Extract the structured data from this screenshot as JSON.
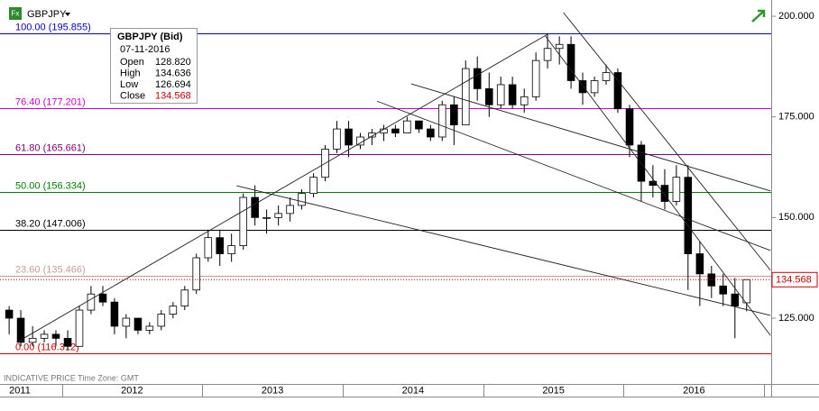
{
  "header": {
    "icon": "Fx",
    "symbol": "GBPJPY",
    "footer": "INDICATIVE PRICE   Time Zone: GMT"
  },
  "tooltip": {
    "title": "GBPJPY (Bid)",
    "date": "07-11-2016",
    "rows": [
      {
        "label": "Open",
        "value": "128.820"
      },
      {
        "label": "High",
        "value": "134.636"
      },
      {
        "label": "Low",
        "value": "126.694"
      },
      {
        "label": "Close",
        "value": "134.568"
      }
    ]
  },
  "chart_data": {
    "type": "candlestick",
    "x": [
      2011.625,
      2011.708,
      2011.792,
      2011.875,
      2011.958,
      2012.042,
      2012.125,
      2012.208,
      2012.292,
      2012.375,
      2012.458,
      2012.542,
      2012.625,
      2012.708,
      2012.792,
      2012.875,
      2012.958,
      2013.042,
      2013.125,
      2013.208,
      2013.292,
      2013.375,
      2013.458,
      2013.542,
      2013.625,
      2013.708,
      2013.792,
      2013.875,
      2013.958,
      2014.042,
      2014.125,
      2014.208,
      2014.292,
      2014.375,
      2014.458,
      2014.542,
      2014.625,
      2014.708,
      2014.792,
      2014.875,
      2014.958,
      2015.042,
      2015.125,
      2015.208,
      2015.292,
      2015.375,
      2015.458,
      2015.542,
      2015.625,
      2015.708,
      2015.792,
      2015.875,
      2015.958,
      2016.042,
      2016.125,
      2016.208,
      2016.292,
      2016.375,
      2016.458,
      2016.542,
      2016.625,
      2016.708,
      2016.792,
      2016.875
    ],
    "open": [
      127,
      125,
      119,
      120,
      121,
      120,
      118,
      127,
      131,
      129,
      123,
      125,
      122,
      123,
      126,
      128,
      132,
      140,
      145,
      141,
      143,
      155,
      150,
      150,
      151,
      153,
      156,
      160,
      167,
      172,
      168,
      170,
      171,
      172,
      171,
      174,
      172,
      170,
      178,
      173,
      187,
      182,
      178,
      183,
      178,
      180,
      189,
      192,
      193,
      184,
      181,
      184,
      186,
      177,
      168,
      159,
      158,
      154,
      160,
      141,
      136,
      133,
      131,
      128.82
    ],
    "high": [
      128,
      127,
      123,
      122,
      122,
      122,
      128,
      133,
      133,
      130,
      126,
      125,
      124,
      127,
      129,
      133,
      141,
      147,
      147,
      146,
      156,
      158,
      152,
      153,
      155,
      157,
      161,
      168,
      174,
      174,
      171,
      172,
      173,
      173,
      175,
      174,
      173,
      179,
      180,
      189,
      190,
      186,
      185,
      185,
      182,
      191,
      195.8,
      195,
      195,
      186,
      185,
      188,
      187,
      178,
      169,
      163,
      162,
      163,
      163,
      144,
      138,
      136,
      135,
      134.636
    ],
    "low": [
      121,
      118,
      118,
      119,
      118,
      117,
      118,
      126,
      128,
      121,
      120,
      121,
      121,
      122,
      125,
      127,
      131,
      139,
      138,
      139,
      142,
      148,
      146,
      148,
      149,
      152,
      155,
      159,
      166,
      165,
      167,
      168,
      169,
      170,
      171,
      171,
      169,
      169,
      168,
      173,
      179,
      175,
      177,
      177,
      176,
      179,
      187,
      188,
      182,
      178,
      180,
      183,
      176,
      165,
      154,
      155,
      152,
      153,
      132,
      128,
      130,
      128,
      120,
      126.694
    ],
    "close": [
      125,
      119,
      120,
      121,
      120,
      118,
      127,
      131,
      129,
      123,
      125,
      122,
      123,
      126,
      128,
      132,
      140,
      145,
      141,
      143,
      155,
      150,
      150,
      151,
      153,
      156,
      160,
      167,
      172,
      168,
      170,
      171,
      172,
      171,
      174,
      172,
      170,
      178,
      173,
      187,
      182,
      178,
      183,
      178,
      180,
      189,
      192,
      193,
      184,
      181,
      184,
      186,
      177,
      168,
      159,
      158,
      154,
      160,
      141,
      136,
      133,
      131,
      128,
      134.568
    ],
    "up_color": "#ffffff",
    "down_color": "#000000",
    "levels": [
      {
        "value": 195.855,
        "label": "100.00 (195.855)",
        "color": "#0000cc"
      },
      {
        "value": 177.201,
        "label": "76.40 (177.201)",
        "color": "#cc00cc"
      },
      {
        "value": 165.661,
        "label": "61.80 (165.661)",
        "color": "#800080"
      },
      {
        "value": 156.334,
        "label": "50.00 (156.334)",
        "color": "#008000"
      },
      {
        "value": 147.006,
        "label": "38.20 (147.006)",
        "color": "#000000"
      },
      {
        "value": 135.466,
        "label": "23.60 (135.466)",
        "color": "#c99a9a"
      },
      {
        "value": 116.312,
        "label": "0.00 (116.312)",
        "color": "#cc0000"
      }
    ],
    "trend_lines": [
      {
        "x": [
          2011.679,
          2015.462
        ],
        "y": [
          119.0,
          195.6
        ]
      },
      {
        "x": [
          2013.244,
          2017.045
        ],
        "y": [
          157.9,
          125.7
        ]
      },
      {
        "x": [
          2014.244,
          2017.045
        ],
        "y": [
          178.9,
          141.8
        ]
      },
      {
        "x": [
          2014.487,
          2017.045
        ],
        "y": [
          183.2,
          156.6
        ]
      },
      {
        "x": [
          2015.571,
          2017.045
        ],
        "y": [
          200.9,
          136.9
        ]
      },
      {
        "x": [
          2015.442,
          2017.045
        ],
        "y": [
          195.1,
          120.7
        ]
      }
    ],
    "last_price": 134.568,
    "xlim": [
      2011.56,
      2017.05
    ],
    "xticks": [
      {
        "value": 2011.5,
        "label": "2011"
      },
      {
        "value": 2012.5,
        "label": "2012"
      },
      {
        "value": 2013.5,
        "label": "2013"
      },
      {
        "value": 2014.5,
        "label": "2014"
      },
      {
        "value": 2015.5,
        "label": "2015"
      },
      {
        "value": 2016.5,
        "label": "2016"
      }
    ],
    "ylim": [
      108.66,
      204.03
    ],
    "yticks": [
      {
        "value": 200,
        "label": "200.000"
      },
      {
        "value": 175,
        "label": "175.000"
      },
      {
        "value": 150,
        "label": "150.000"
      },
      {
        "value": 125,
        "label": "125.000"
      }
    ]
  }
}
